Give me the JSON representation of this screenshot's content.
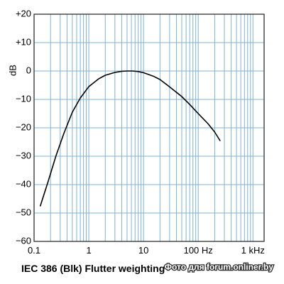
{
  "chart_data": {
    "type": "line",
    "title": "IEC 386 (Blk) Flutter weighting",
    "xlabel": "",
    "ylabel": "dB",
    "x_scale": "log",
    "xlim": [
      0.1,
      1600
    ],
    "ylim": [
      -60,
      20
    ],
    "grid": true,
    "x_major_ticks": [
      {
        "value": 0.1,
        "label": "0.1"
      },
      {
        "value": 1,
        "label": "1"
      },
      {
        "value": 10,
        "label": "10"
      },
      {
        "value": 100,
        "label": "100 Hz"
      },
      {
        "value": 1000,
        "label": "1 kHz"
      }
    ],
    "y_ticks": [
      {
        "value": 20,
        "label": "+20"
      },
      {
        "value": 10,
        "label": "+10"
      },
      {
        "value": 0,
        "label": "0"
      },
      {
        "value": -10,
        "label": "−10"
      },
      {
        "value": -20,
        "label": "−20"
      },
      {
        "value": -30,
        "label": "−30"
      },
      {
        "value": -40,
        "label": "−40"
      },
      {
        "value": -50,
        "label": "−50"
      },
      {
        "value": -60,
        "label": "−60"
      }
    ],
    "series": [
      {
        "x": [
          0.13,
          0.18,
          0.25,
          0.35,
          0.5,
          0.7,
          1.0,
          1.5,
          2.0,
          3.0,
          4.0,
          5.0,
          6.3,
          8.0,
          10,
          15,
          20,
          30,
          50,
          70,
          100,
          150,
          200,
          250
        ],
        "y": [
          -47.5,
          -39,
          -30,
          -22,
          -14.5,
          -9.5,
          -5.5,
          -2.8,
          -1.5,
          -0.5,
          -0.1,
          0,
          0,
          -0.2,
          -0.6,
          -1.8,
          -3,
          -5.6,
          -9,
          -11.8,
          -15,
          -18.5,
          -21.5,
          -24.5
        ]
      }
    ]
  },
  "style": {
    "background_color": "#ffffff",
    "plot_background_color": "#ffffff",
    "grid_color": "#7fb2d4",
    "frame_color": "#1f1f1f",
    "line_color": "#000000"
  },
  "watermark": "Фото для forum.onliner.by"
}
